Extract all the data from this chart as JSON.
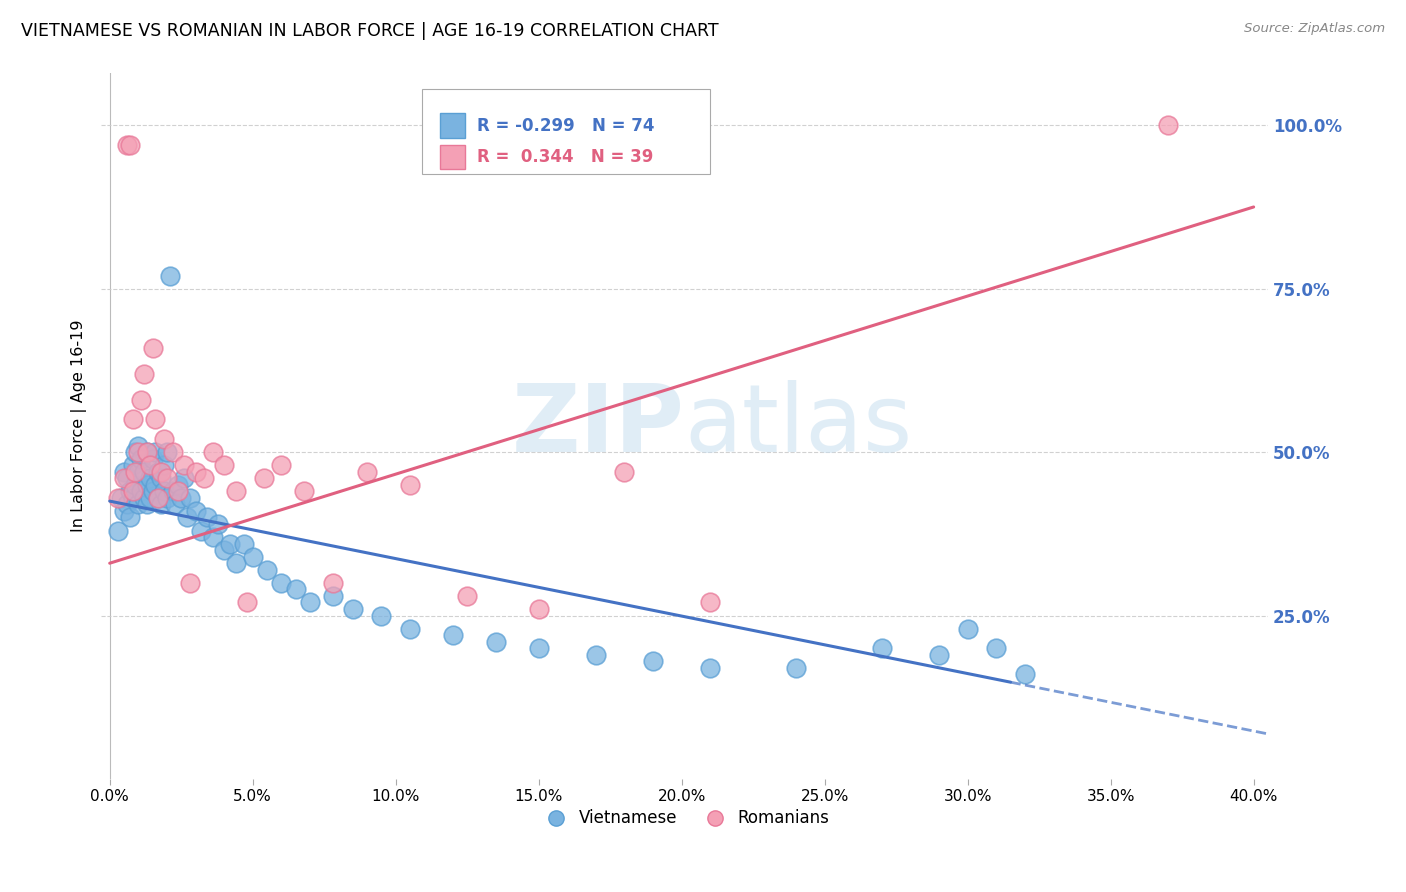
{
  "title": "VIETNAMESE VS ROMANIAN IN LABOR FORCE | AGE 16-19 CORRELATION CHART",
  "source": "Source: ZipAtlas.com",
  "ylabel_left": "In Labor Force | Age 16-19",
  "x_tick_labels": [
    "0.0%",
    "",
    "5.0%",
    "",
    "10.0%",
    "",
    "15.0%",
    "",
    "20.0%",
    "",
    "25.0%",
    "",
    "30.0%",
    "",
    "35.0%",
    "",
    "40.0%"
  ],
  "x_tick_values": [
    0.0,
    0.025,
    0.05,
    0.075,
    0.1,
    0.125,
    0.15,
    0.175,
    0.2,
    0.225,
    0.25,
    0.275,
    0.3,
    0.325,
    0.35,
    0.375,
    0.4
  ],
  "y_tick_labels_right": [
    "100.0%",
    "75.0%",
    "50.0%",
    "25.0%"
  ],
  "y_tick_values": [
    1.0,
    0.75,
    0.5,
    0.25
  ],
  "xlim": [
    -0.003,
    0.405
  ],
  "ylim": [
    0.0,
    1.08
  ],
  "legend_r_blue": "-0.299",
  "legend_n_blue": "74",
  "legend_r_pink": "0.344",
  "legend_n_pink": "39",
  "blue_marker_color": "#7ab3e0",
  "blue_edge_color": "#5a9fd4",
  "pink_marker_color": "#f4a0b5",
  "pink_edge_color": "#e87898",
  "trend_blue_color": "#4472c4",
  "trend_pink_color": "#e06080",
  "background_color": "#ffffff",
  "grid_color": "#cccccc",
  "right_axis_color": "#4472c4",
  "viet_line_x0": 0.0,
  "viet_line_y0": 0.425,
  "viet_line_x1": 0.315,
  "viet_line_y1": 0.148,
  "rom_line_x0": 0.0,
  "rom_line_y0": 0.33,
  "rom_line_x1": 0.4,
  "rom_line_y1": 0.875,
  "viet_x": [
    0.003,
    0.004,
    0.005,
    0.005,
    0.006,
    0.006,
    0.007,
    0.007,
    0.008,
    0.008,
    0.009,
    0.009,
    0.01,
    0.01,
    0.01,
    0.011,
    0.011,
    0.012,
    0.012,
    0.013,
    0.013,
    0.013,
    0.014,
    0.014,
    0.015,
    0.015,
    0.016,
    0.016,
    0.017,
    0.017,
    0.018,
    0.018,
    0.019,
    0.019,
    0.02,
    0.02,
    0.021,
    0.022,
    0.023,
    0.024,
    0.025,
    0.026,
    0.027,
    0.028,
    0.03,
    0.032,
    0.034,
    0.036,
    0.038,
    0.04,
    0.042,
    0.044,
    0.047,
    0.05,
    0.055,
    0.06,
    0.065,
    0.07,
    0.078,
    0.085,
    0.095,
    0.105,
    0.12,
    0.135,
    0.15,
    0.17,
    0.19,
    0.21,
    0.24,
    0.27,
    0.29,
    0.3,
    0.31,
    0.32
  ],
  "viet_y": [
    0.38,
    0.43,
    0.41,
    0.47,
    0.42,
    0.46,
    0.4,
    0.44,
    0.43,
    0.48,
    0.45,
    0.5,
    0.42,
    0.47,
    0.51,
    0.44,
    0.49,
    0.43,
    0.47,
    0.45,
    0.5,
    0.42,
    0.46,
    0.43,
    0.44,
    0.49,
    0.45,
    0.5,
    0.43,
    0.47,
    0.46,
    0.42,
    0.44,
    0.48,
    0.43,
    0.5,
    0.77,
    0.44,
    0.42,
    0.45,
    0.43,
    0.46,
    0.4,
    0.43,
    0.41,
    0.38,
    0.4,
    0.37,
    0.39,
    0.35,
    0.36,
    0.33,
    0.36,
    0.34,
    0.32,
    0.3,
    0.29,
    0.27,
    0.28,
    0.26,
    0.25,
    0.23,
    0.22,
    0.21,
    0.2,
    0.19,
    0.18,
    0.17,
    0.17,
    0.2,
    0.19,
    0.23,
    0.2,
    0.16
  ],
  "rom_x": [
    0.003,
    0.005,
    0.006,
    0.007,
    0.008,
    0.008,
    0.009,
    0.01,
    0.011,
    0.012,
    0.013,
    0.014,
    0.015,
    0.016,
    0.017,
    0.018,
    0.019,
    0.02,
    0.022,
    0.024,
    0.026,
    0.028,
    0.03,
    0.033,
    0.036,
    0.04,
    0.044,
    0.048,
    0.054,
    0.06,
    0.068,
    0.078,
    0.09,
    0.105,
    0.125,
    0.15,
    0.18,
    0.21,
    0.37
  ],
  "rom_y": [
    0.43,
    0.46,
    0.97,
    0.97,
    0.44,
    0.55,
    0.47,
    0.5,
    0.58,
    0.62,
    0.5,
    0.48,
    0.66,
    0.55,
    0.43,
    0.47,
    0.52,
    0.46,
    0.5,
    0.44,
    0.48,
    0.3,
    0.47,
    0.46,
    0.5,
    0.48,
    0.44,
    0.27,
    0.46,
    0.48,
    0.44,
    0.3,
    0.47,
    0.45,
    0.28,
    0.26,
    0.47,
    0.27,
    1.0
  ]
}
